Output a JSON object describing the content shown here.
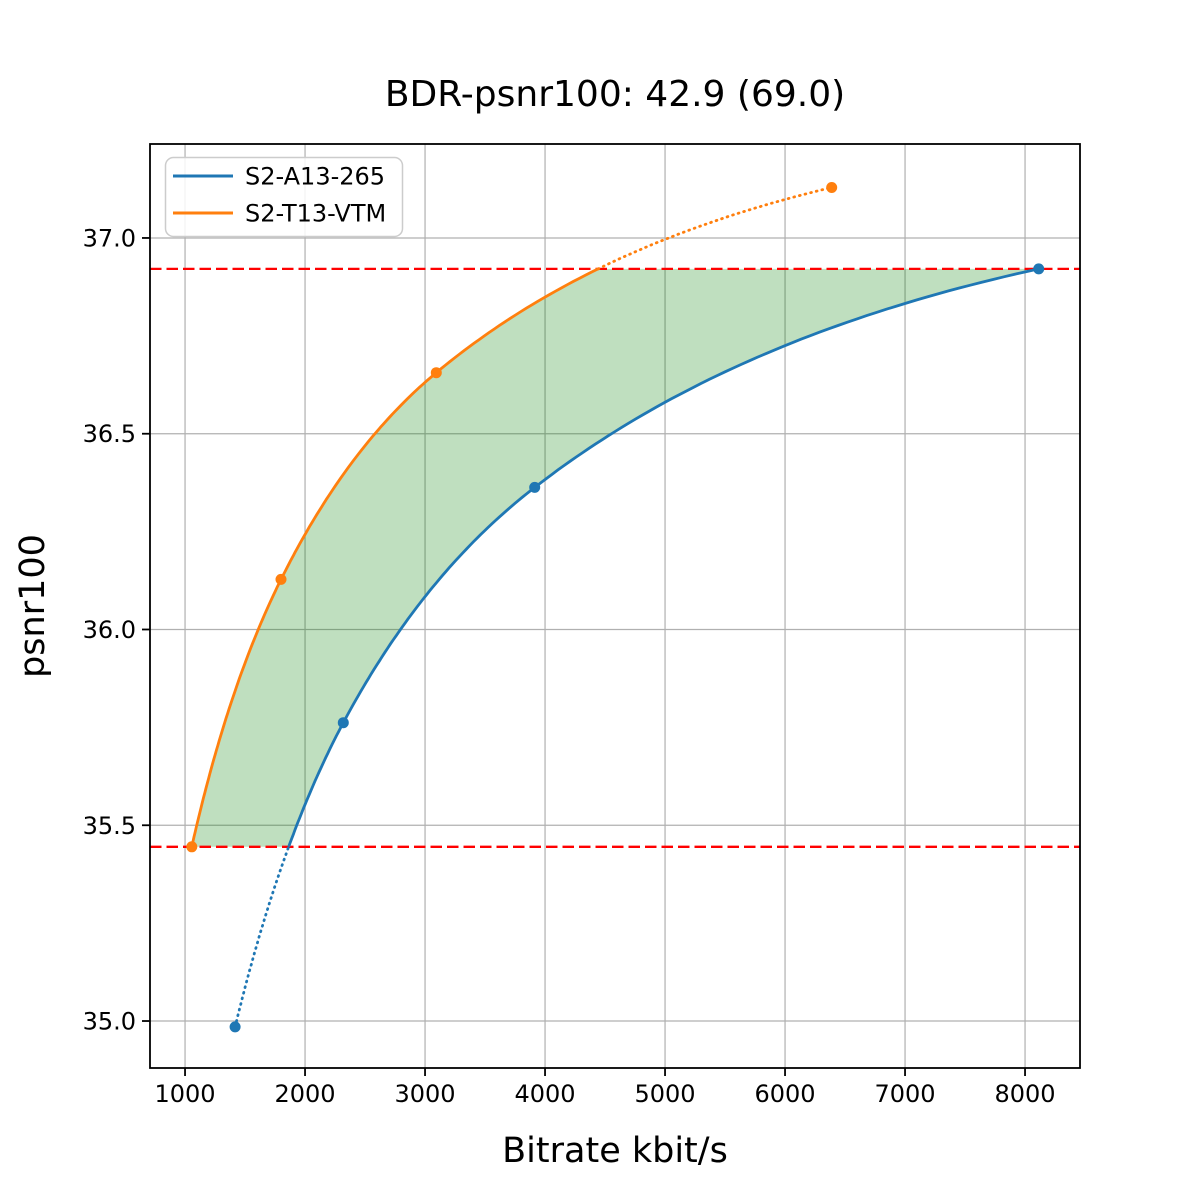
{
  "chart_data": {
    "type": "line",
    "title": "BDR-psnr100: 42.9 (69.0)",
    "xlabel": "Bitrate kbit/s",
    "ylabel": "psnr100",
    "xlim": [
      708,
      8458
    ],
    "ylim": [
      34.88,
      37.24
    ],
    "x_ticks": [
      1000,
      2000,
      3000,
      4000,
      5000,
      6000,
      7000,
      8000
    ],
    "y_ticks": [
      35.0,
      35.5,
      36.0,
      36.5,
      37.0
    ],
    "grid": true,
    "grid_color": "#b0b0b0",
    "legend_position": "upper left",
    "series": [
      {
        "name": "S2-A13-265",
        "color": "#1f77b4",
        "points": [
          [
            1417,
            34.985
          ],
          [
            2319,
            35.762
          ],
          [
            3914,
            36.363
          ],
          [
            8114,
            36.921
          ]
        ]
      },
      {
        "name": "S2-T13-VTM",
        "color": "#ff7f0e",
        "points": [
          [
            1056,
            35.445
          ],
          [
            1800,
            36.128
          ],
          [
            3094,
            36.656
          ],
          [
            6389,
            37.129
          ]
        ]
      }
    ],
    "overlap_lines": {
      "color": "#ff0000",
      "style": "dashed",
      "values": [
        35.445,
        36.921
      ],
      "comment_low_is_max_of_min_psnr": 35.445,
      "comment_high_is_min_of_max_psnr": 36.921
    },
    "fill_between": {
      "color": "#008000",
      "opacity": 0.25
    }
  }
}
